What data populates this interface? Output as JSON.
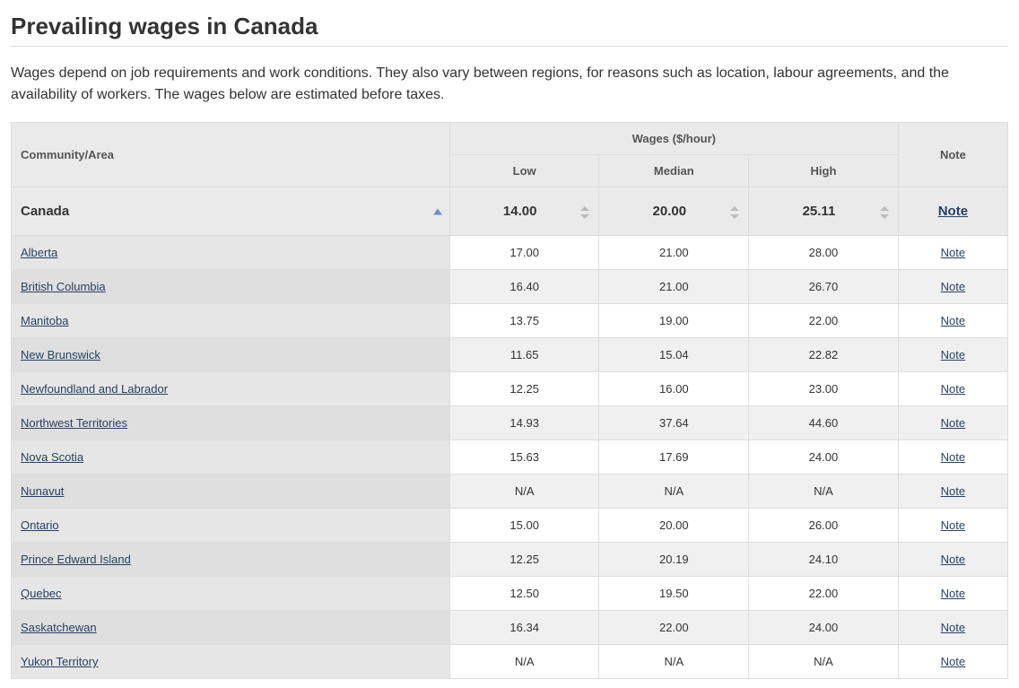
{
  "page": {
    "title": "Prevailing wages in Canada",
    "intro": "Wages depend on job requirements and work conditions. They also vary between regions, for reasons such as location, labour agreements, and the availability of workers. The wages below are estimated before taxes."
  },
  "table": {
    "columns": {
      "area": "Community/Area",
      "wages_group": "Wages ($/hour)",
      "low": "Low",
      "median": "Median",
      "high": "High",
      "note": "Note"
    },
    "canada_row": {
      "area": "Canada",
      "low": "14.00",
      "median": "20.00",
      "high": "25.11",
      "note": "Note"
    },
    "rows": [
      {
        "area": "Alberta",
        "low": "17.00",
        "median": "21.00",
        "high": "28.00",
        "note": "Note"
      },
      {
        "area": "British Columbia",
        "low": "16.40",
        "median": "21.00",
        "high": "26.70",
        "note": "Note"
      },
      {
        "area": "Manitoba",
        "low": "13.75",
        "median": "19.00",
        "high": "22.00",
        "note": "Note"
      },
      {
        "area": "New Brunswick",
        "low": "11.65",
        "median": "15.04",
        "high": "22.82",
        "note": "Note"
      },
      {
        "area": "Newfoundland and Labrador",
        "low": "12.25",
        "median": "16.00",
        "high": "23.00",
        "note": "Note"
      },
      {
        "area": "Northwest Territories",
        "low": "14.93",
        "median": "37.64",
        "high": "44.60",
        "note": "Note"
      },
      {
        "area": "Nova Scotia",
        "low": "15.63",
        "median": "17.69",
        "high": "24.00",
        "note": "Note"
      },
      {
        "area": "Nunavut",
        "low": "N/A",
        "median": "N/A",
        "high": "N/A",
        "note": "Note"
      },
      {
        "area": "Ontario",
        "low": "15.00",
        "median": "20.00",
        "high": "26.00",
        "note": "Note"
      },
      {
        "area": "Prince Edward Island",
        "low": "12.25",
        "median": "20.19",
        "high": "24.10",
        "note": "Note"
      },
      {
        "area": "Quebec",
        "low": "12.50",
        "median": "19.50",
        "high": "22.00",
        "note": "Note"
      },
      {
        "area": "Saskatchewan",
        "low": "16.34",
        "median": "22.00",
        "high": "24.00",
        "note": "Note"
      },
      {
        "area": "Yukon Territory",
        "low": "N/A",
        "median": "N/A",
        "high": "N/A",
        "note": "Note"
      }
    ]
  },
  "style": {
    "link_color": "#284162",
    "header_bg": "#eaeaea",
    "border_color": "#dddddd",
    "sort_arrow_color": "#6f8ec7"
  }
}
